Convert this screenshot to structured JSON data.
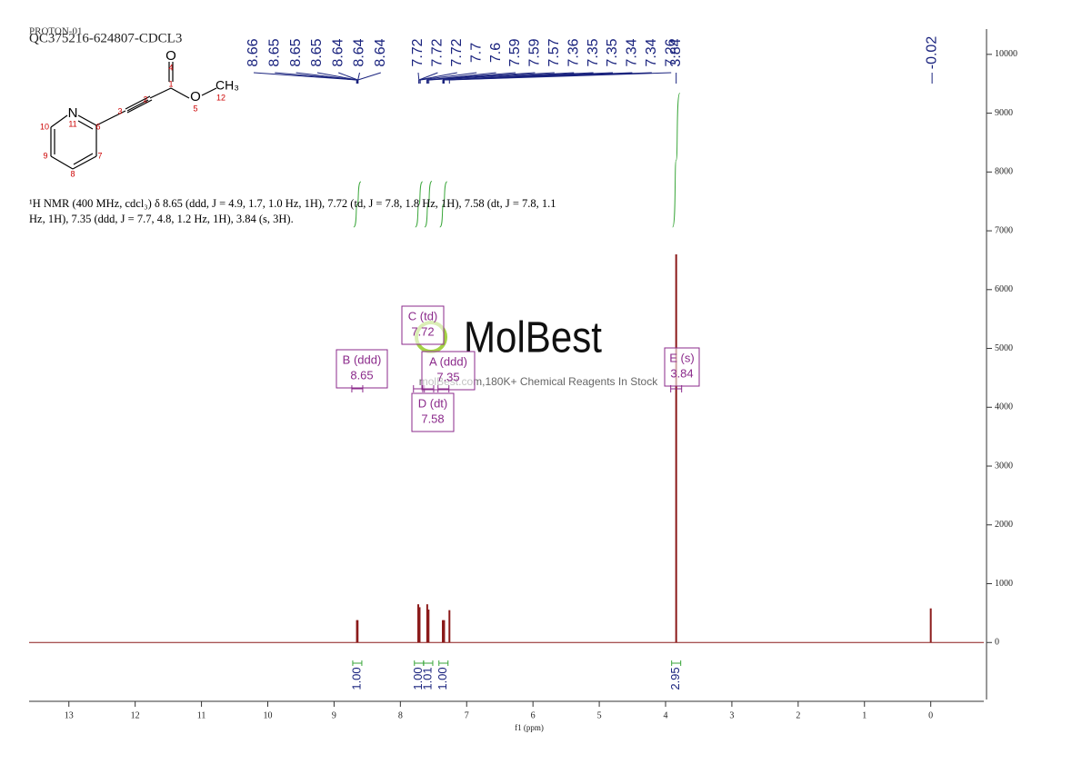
{
  "chart_data": {
    "type": "nmr",
    "experiment": "PROTON-01",
    "title": "QC375216-624807-CDCL3",
    "description": "¹H NMR (400 MHz, cdcl₃) δ 8.65 (ddd, J = 4.9, 1.7, 1.0 Hz, 1H), 7.72 (td, J = 7.8, 1.8 Hz, 1H), 7.58 (dt, J = 7.8, 1.1 Hz, 1H), 7.35 (ddd, J = 7.7, 4.8, 1.2 Hz, 1H), 3.84 (s, 3H).",
    "xlabel": "f1 (ppm)",
    "x": [
      8.655,
      8.645,
      7.73,
      7.71,
      7.595,
      7.575,
      7.36,
      7.34,
      7.26,
      3.84,
      0
    ],
    "values": [
      380,
      380,
      650,
      600,
      650,
      560,
      380,
      380,
      550,
      6600,
      580
    ],
    "color": "#8b1a1a",
    "xlim": [
      13.6,
      -0.8
    ],
    "xticks": [
      13,
      12,
      11,
      10,
      9,
      8,
      7,
      6,
      5,
      4,
      3,
      2,
      1,
      0
    ],
    "ylim": [
      -1000,
      10430
    ],
    "yticks": [
      0,
      1000,
      2000,
      3000,
      4000,
      5000,
      6000,
      7000,
      8000,
      9000,
      10000
    ],
    "peak_label_groups": [
      [
        8.66,
        8.65,
        8.65,
        8.65,
        8.64,
        8.64,
        8.64
      ],
      [
        7.72,
        7.72,
        7.72,
        7.7,
        7.6,
        7.59,
        7.59,
        7.57,
        7.36,
        7.35,
        7.35,
        7.34,
        7.34,
        7.26
      ],
      [
        3.84
      ],
      [
        -0.02
      ]
    ],
    "integrals": {
      "x": [
        8.65,
        7.72,
        7.58,
        7.35,
        3.84
      ],
      "values": [
        1,
        1,
        1.01,
        1,
        2.95
      ],
      "value_labels": [
        "1.00",
        "1.00",
        "1.01",
        "1.00",
        "2.95"
      ]
    },
    "multiplets": [
      {
        "label": "B (ddd)",
        "shift": 8.65
      },
      {
        "label": "C (td)",
        "shift": 7.72
      },
      {
        "label": "A (ddd)",
        "shift": 7.35
      },
      {
        "label": "D (dt)",
        "shift": 7.58
      },
      {
        "label": "E (s)",
        "shift": 3.84
      }
    ],
    "watermark": {
      "logo": "MolBest",
      "tagline": "molBest.com,180K+ Chemical Reagents In Stock"
    },
    "structure": {
      "atoms": [
        "O",
        "4",
        "1",
        "2",
        "3",
        "O",
        "5",
        "CH₃",
        "12",
        "N",
        "11",
        "6",
        "10",
        "9",
        "8",
        "7"
      ]
    }
  }
}
